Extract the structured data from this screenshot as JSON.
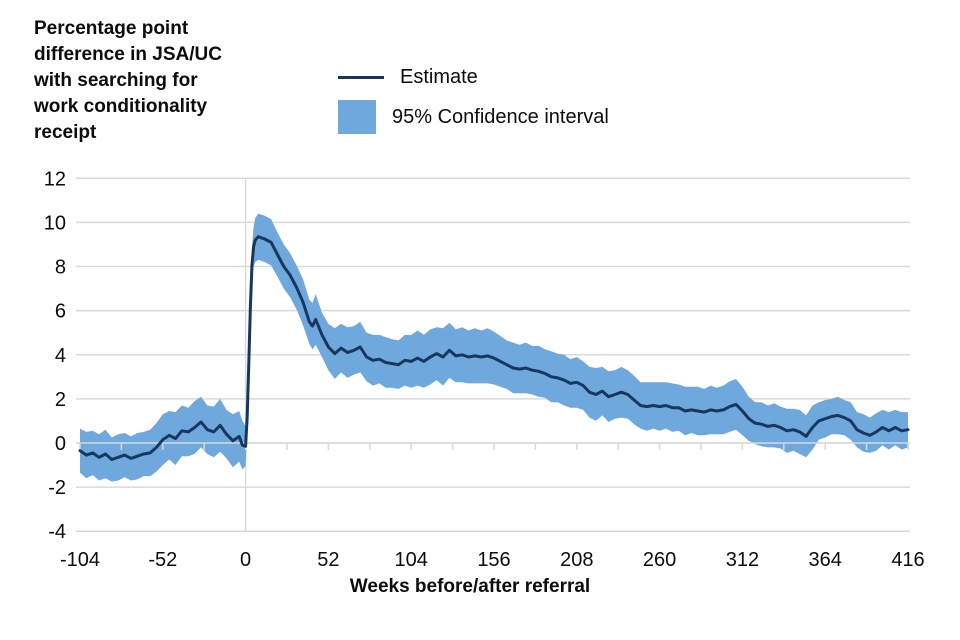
{
  "header": {
    "title": "Percentage point difference in JSA/UC with searching for work conditionality receipt",
    "title_lines": [
      "Percentage point",
      "difference in JSA/UC",
      "with searching for",
      "work conditionality",
      "receipt"
    ]
  },
  "legend": {
    "estimate_label": "Estimate",
    "ci_label": "95% Confidence interval"
  },
  "colors": {
    "estimate_line": "#17375E",
    "confidence_band": "#6FA8DC",
    "gridline": "#D9D9D9",
    "text": "#0B0C0C",
    "background": "#FFFFFF"
  },
  "chart_data": {
    "type": "line",
    "title": "Percentage point difference in JSA/UC with searching for work conditionality receipt",
    "xlabel": "Weeks before/after referral",
    "ylabel": "Percentage point difference in JSA/UC with searching for work conditionality receipt",
    "xlim": [
      -104,
      416
    ],
    "ylim": [
      -4,
      12
    ],
    "x_ticks": [
      -104,
      -52,
      0,
      52,
      104,
      156,
      208,
      260,
      312,
      364,
      416
    ],
    "y_ticks": [
      12,
      10,
      8,
      6,
      4,
      2,
      0,
      -2,
      -4
    ],
    "x_minor_tick_step": 26,
    "grid": "horizontal",
    "zero_reference_lines": {
      "vertical_at_week": 0,
      "horizontal_at_value": 0
    },
    "legend_position": "top",
    "weeks": [
      -104,
      -100,
      -96,
      -92,
      -88,
      -84,
      -80,
      -76,
      -72,
      -68,
      -64,
      -60,
      -56,
      -52,
      -48,
      -44,
      -40,
      -36,
      -32,
      -28,
      -24,
      -20,
      -16,
      -12,
      -8,
      -4,
      -2,
      0,
      1,
      2,
      3,
      4,
      5,
      6,
      8,
      12,
      16,
      20,
      24,
      28,
      32,
      36,
      40,
      42,
      44,
      48,
      52,
      56,
      60,
      64,
      68,
      72,
      76,
      80,
      84,
      88,
      92,
      96,
      100,
      104,
      108,
      112,
      116,
      120,
      124,
      128,
      132,
      136,
      140,
      144,
      148,
      152,
      156,
      160,
      164,
      168,
      172,
      176,
      180,
      184,
      188,
      192,
      196,
      200,
      204,
      208,
      212,
      216,
      220,
      224,
      228,
      232,
      236,
      240,
      244,
      248,
      252,
      256,
      260,
      264,
      268,
      272,
      276,
      280,
      284,
      288,
      292,
      296,
      300,
      304,
      308,
      312,
      316,
      320,
      324,
      328,
      332,
      336,
      340,
      344,
      348,
      352,
      356,
      360,
      364,
      368,
      372,
      376,
      380,
      384,
      388,
      392,
      396,
      400,
      404,
      408,
      412,
      416
    ],
    "series": [
      {
        "name": "Estimate",
        "type": "line",
        "color": "#17375E",
        "values": [
          -0.35,
          -0.55,
          -0.45,
          -0.65,
          -0.5,
          -0.75,
          -0.65,
          -0.55,
          -0.7,
          -0.6,
          -0.5,
          -0.45,
          -0.2,
          0.15,
          0.35,
          0.2,
          0.55,
          0.5,
          0.7,
          0.95,
          0.6,
          0.5,
          0.8,
          0.4,
          0.1,
          0.3,
          -0.1,
          -0.15,
          1.2,
          3.6,
          6.2,
          8.1,
          8.9,
          9.2,
          9.35,
          9.25,
          9.1,
          8.55,
          8.0,
          7.6,
          7.05,
          6.4,
          5.5,
          5.3,
          5.6,
          4.9,
          4.35,
          4.05,
          4.3,
          4.1,
          4.2,
          4.35,
          3.9,
          3.75,
          3.8,
          3.65,
          3.6,
          3.55,
          3.75,
          3.7,
          3.85,
          3.7,
          3.9,
          4.05,
          3.9,
          4.2,
          3.95,
          4.0,
          3.9,
          3.95,
          3.9,
          3.95,
          3.85,
          3.7,
          3.55,
          3.4,
          3.35,
          3.4,
          3.3,
          3.25,
          3.15,
          3.0,
          2.95,
          2.85,
          2.7,
          2.75,
          2.6,
          2.3,
          2.2,
          2.35,
          2.1,
          2.2,
          2.3,
          2.2,
          1.95,
          1.7,
          1.65,
          1.7,
          1.65,
          1.7,
          1.6,
          1.6,
          1.45,
          1.5,
          1.45,
          1.4,
          1.5,
          1.45,
          1.5,
          1.65,
          1.75,
          1.45,
          1.1,
          0.9,
          0.85,
          0.75,
          0.8,
          0.7,
          0.55,
          0.6,
          0.5,
          0.3,
          0.7,
          1.0,
          1.1,
          1.2,
          1.25,
          1.15,
          1.0,
          0.6,
          0.45,
          0.35,
          0.5,
          0.7,
          0.55,
          0.7,
          0.55,
          0.6
        ]
      },
      {
        "name": "95% Confidence interval",
        "type": "band",
        "color": "#6FA8DC",
        "half_width": [
          1.0,
          1.05,
          1.0,
          1.05,
          1.1,
          1.0,
          1.05,
          1.0,
          1.0,
          1.05,
          1.0,
          1.05,
          1.1,
          1.15,
          1.1,
          1.2,
          1.15,
          1.1,
          1.2,
          1.15,
          1.1,
          1.15,
          1.2,
          1.1,
          1.2,
          1.15,
          1.1,
          0.9,
          0.7,
          0.7,
          0.75,
          0.8,
          0.9,
          1.0,
          1.05,
          1.05,
          1.05,
          1.0,
          1.0,
          1.0,
          1.0,
          1.05,
          1.0,
          1.05,
          1.15,
          1.0,
          1.05,
          1.15,
          1.1,
          1.15,
          1.1,
          1.15,
          1.1,
          1.15,
          1.1,
          1.15,
          1.1,
          1.1,
          1.15,
          1.2,
          1.25,
          1.2,
          1.25,
          1.2,
          1.3,
          1.25,
          1.2,
          1.25,
          1.2,
          1.25,
          1.2,
          1.25,
          1.2,
          1.15,
          1.1,
          1.15,
          1.1,
          1.15,
          1.1,
          1.15,
          1.1,
          1.15,
          1.1,
          1.15,
          1.1,
          1.15,
          1.1,
          1.15,
          1.2,
          1.1,
          1.15,
          1.1,
          1.15,
          1.1,
          1.1,
          1.05,
          1.1,
          1.05,
          1.1,
          1.05,
          1.1,
          1.05,
          1.1,
          1.05,
          1.1,
          1.05,
          1.1,
          1.05,
          1.1,
          1.15,
          1.15,
          1.1,
          1.0,
          0.95,
          1.0,
          0.95,
          1.0,
          0.95,
          1.0,
          0.95,
          1.0,
          0.95,
          1.0,
          0.85,
          0.85,
          0.8,
          0.85,
          0.8,
          0.85,
          0.8,
          0.85,
          0.8,
          0.85,
          0.8,
          0.85,
          0.8,
          0.85,
          0.8
        ]
      }
    ]
  }
}
